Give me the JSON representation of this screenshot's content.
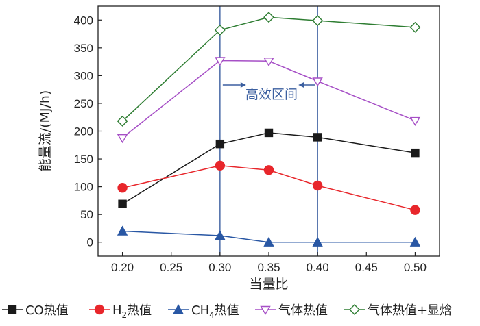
{
  "chart_data": {
    "type": "line",
    "xlabel": "当量比",
    "ylabel": "能量流/(MJ/h)",
    "xlim": [
      0.175,
      0.525
    ],
    "ylim": [
      -25,
      425
    ],
    "xticks": [
      0.2,
      0.25,
      0.3,
      0.35,
      0.4,
      0.45,
      0.5
    ],
    "xtick_labels": [
      "0.20",
      "0.25",
      "0.30",
      "0.35",
      "0.40",
      "0.45",
      "0.50"
    ],
    "yticks": [
      0,
      50,
      100,
      150,
      200,
      250,
      300,
      350,
      400
    ],
    "ytick_labels": [
      "0",
      "50",
      "100",
      "150",
      "200",
      "250",
      "300",
      "350",
      "400"
    ],
    "grid": false,
    "legend_position": "bottom",
    "x": [
      0.2,
      0.3,
      0.35,
      0.4,
      0.5
    ],
    "series": [
      {
        "name": "CO热值",
        "marker": "square",
        "color": "#1a1a1a",
        "filled": true,
        "values": [
          69,
          177,
          197,
          189,
          161
        ]
      },
      {
        "name": "H2热值",
        "name_parts": [
          "H",
          "2",
          "热值"
        ],
        "marker": "circle",
        "color": "#e8262b",
        "filled": true,
        "values": [
          98,
          138,
          130,
          102,
          58
        ]
      },
      {
        "name": "CH4热值",
        "name_parts": [
          "CH",
          "4",
          "热值"
        ],
        "marker": "triangle-up",
        "color": "#2957a4",
        "filled": true,
        "values": [
          20,
          12,
          0,
          0,
          0
        ]
      },
      {
        "name": "气体热值",
        "marker": "triangle-down",
        "color": "#a64fc6",
        "filled": false,
        "values": [
          188,
          327,
          326,
          290,
          219
        ]
      },
      {
        "name": "气体热值+显焓",
        "marker": "diamond",
        "color": "#2e7d32",
        "filled": false,
        "values": [
          218,
          382,
          405,
          399,
          387
        ]
      }
    ],
    "annotations": {
      "region_lines_x": [
        0.3,
        0.4
      ],
      "region_line_color": "#3b5fa0",
      "region_text": "高效区间",
      "region_text_color": "#3b5fa0"
    }
  }
}
